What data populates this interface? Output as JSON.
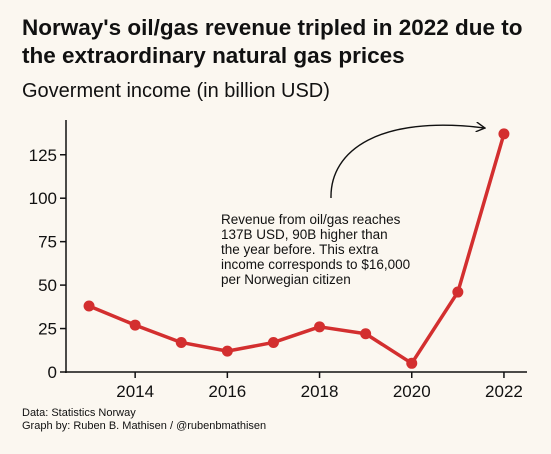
{
  "title": "Norway's oil/gas revenue tripled in 2022 due to the extraordinary natural gas prices",
  "subtitle": "Goverment income (in billion USD)",
  "footer": {
    "source": "Data: Statistics Norway",
    "credit": "Graph by: Ruben B. Mathisen / @rubenbmathisen"
  },
  "colors": {
    "line": "#d32f2f",
    "background": "#fbf7f0",
    "text": "#111111"
  },
  "chart_data": {
    "type": "line",
    "title": "Goverment income (in billion USD)",
    "xlabel": "",
    "ylabel": "",
    "x": [
      2013,
      2014,
      2015,
      2016,
      2017,
      2018,
      2019,
      2020,
      2021,
      2022
    ],
    "series": [
      {
        "values": [
          38,
          27,
          17,
          12,
          17,
          26,
          22,
          5,
          46,
          137
        ]
      }
    ],
    "xlim": [
      2012.5,
      2022.5
    ],
    "ylim": [
      0,
      145
    ],
    "xticks": [
      2014,
      2016,
      2018,
      2020,
      2022
    ],
    "yticks": [
      0,
      25,
      50,
      75,
      100,
      125
    ],
    "grid": false,
    "annotations": [
      {
        "lines": [
          "Revenue from oil/gas reaches",
          "137B USD, 90B higher than",
          "the year before. This extra",
          "income corresponds to $16,000",
          "per Norwegian citizen"
        ],
        "arrow_to": [
          2022,
          137
        ]
      }
    ]
  }
}
